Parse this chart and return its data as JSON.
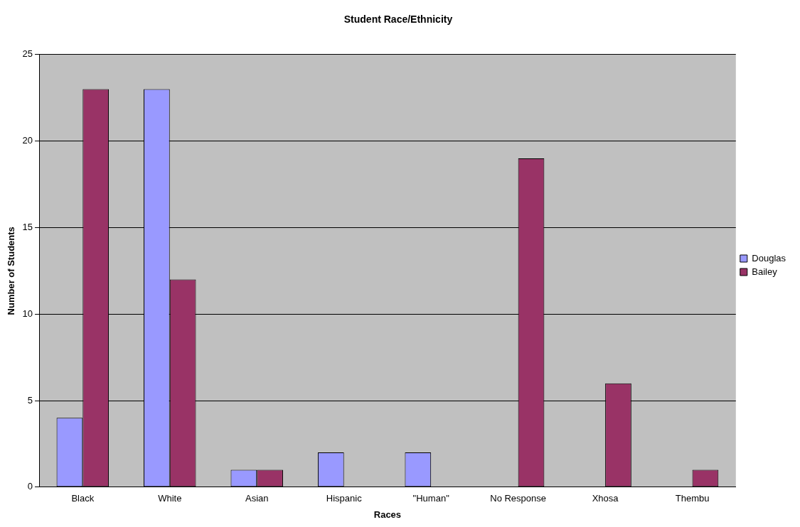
{
  "chart_data": {
    "type": "bar",
    "title": "Student Race/Ethnicity",
    "xlabel": "Races",
    "ylabel": "Number of Students",
    "categories": [
      "Black",
      "White",
      "Asian",
      "Hispanic",
      "\"Human\"",
      "No Response",
      "Xhosa",
      "Thembu"
    ],
    "series": [
      {
        "name": "Douglas",
        "color": "#9999ff",
        "values": [
          4,
          23,
          1,
          2,
          2,
          0,
          0,
          0
        ]
      },
      {
        "name": "Bailey",
        "color": "#993366",
        "values": [
          23,
          12,
          1,
          0,
          0,
          19,
          6,
          1
        ]
      }
    ],
    "ylim": [
      0,
      25
    ],
    "yticks": [
      0,
      5,
      10,
      15,
      20,
      25
    ],
    "grid": "y",
    "legend": "right"
  }
}
